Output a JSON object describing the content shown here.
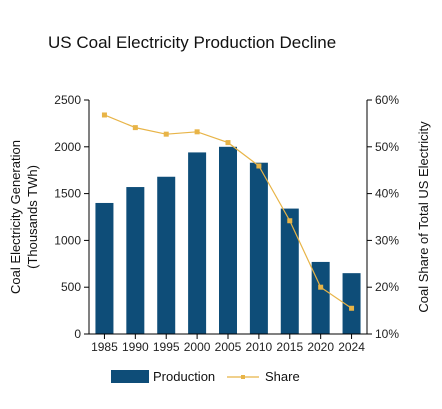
{
  "chart_data": {
    "type": "bar",
    "title": "US Coal Electricity Production Decline",
    "categories": [
      "1985",
      "1990",
      "1995",
      "2000",
      "2005",
      "2010",
      "2015",
      "2020",
      "2024"
    ],
    "series": [
      {
        "name": "Production",
        "type": "bar",
        "axis": "left",
        "color": "#0e4d78",
        "values": [
          1400,
          1570,
          1680,
          1940,
          2000,
          1830,
          1340,
          770,
          650
        ]
      },
      {
        "name": "Share",
        "type": "line",
        "axis": "right",
        "color": "#e8b447",
        "values": [
          56.8,
          54.1,
          52.7,
          53.2,
          50.9,
          45.9,
          34.2,
          20.0,
          15.5
        ]
      }
    ],
    "ylabel_lines": [
      "Coal Electricity Generation",
      "(Thousands TWh)"
    ],
    "y2label": "Coal Share of Total US Electricity",
    "ylim": [
      0,
      2500
    ],
    "y2lim": [
      10,
      60
    ],
    "yticks": [
      0,
      500,
      1000,
      1500,
      2000,
      2500
    ],
    "y2ticks": [
      "10%",
      "20%",
      "30%",
      "40%",
      "50%",
      "60%"
    ],
    "grid": false,
    "legend_position": "bottom"
  }
}
